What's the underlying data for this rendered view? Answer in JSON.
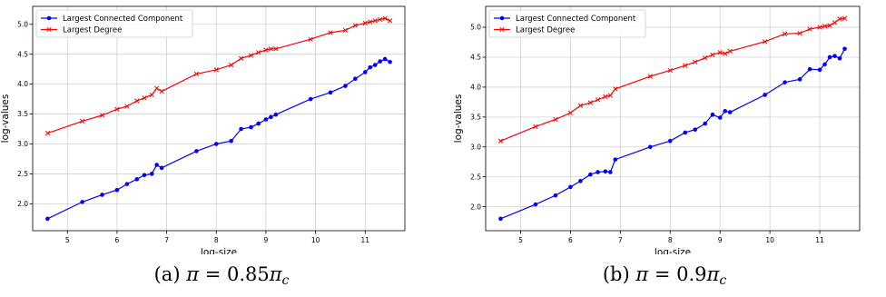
{
  "chart_data": [
    {
      "type": "line",
      "xlabel": "log-size",
      "ylabel": "log-values",
      "xlim": [
        4.3,
        11.8
      ],
      "ylim": [
        1.55,
        5.3
      ],
      "xticks": [
        5,
        6,
        7,
        8,
        9,
        10,
        11
      ],
      "yticks": [
        2.0,
        2.5,
        3.0,
        3.5,
        4.0,
        4.5,
        5.0
      ],
      "grid": true,
      "legend_position": "top-left",
      "series": [
        {
          "name": "Largest Connected Component",
          "color": "#0000ff",
          "marker": "circle",
          "x": [
            4.6,
            5.3,
            5.7,
            6.0,
            6.2,
            6.4,
            6.55,
            6.7,
            6.8,
            6.9,
            7.6,
            8.0,
            8.3,
            8.5,
            8.7,
            8.85,
            9.0,
            9.1,
            9.2,
            9.9,
            10.3,
            10.6,
            10.8,
            11.0,
            11.1,
            11.2,
            11.3,
            11.4,
            11.5
          ],
          "y": [
            1.75,
            2.03,
            2.15,
            2.23,
            2.33,
            2.41,
            2.48,
            2.5,
            2.65,
            2.6,
            2.88,
            3.0,
            3.05,
            3.25,
            3.28,
            3.34,
            3.41,
            3.45,
            3.49,
            3.75,
            3.86,
            3.97,
            4.09,
            4.2,
            4.28,
            4.32,
            4.38,
            4.42,
            4.37
          ]
        },
        {
          "name": "Largest Degree",
          "color": "#ff0000",
          "marker": "x",
          "x": [
            4.6,
            5.3,
            5.7,
            6.0,
            6.2,
            6.4,
            6.55,
            6.7,
            6.8,
            6.9,
            7.6,
            8.0,
            8.3,
            8.5,
            8.7,
            8.85,
            9.0,
            9.1,
            9.2,
            9.9,
            10.3,
            10.6,
            10.8,
            11.0,
            11.1,
            11.2,
            11.3,
            11.4,
            11.5
          ],
          "y": [
            3.18,
            3.38,
            3.48,
            3.58,
            3.63,
            3.72,
            3.77,
            3.82,
            3.93,
            3.88,
            4.17,
            4.24,
            4.32,
            4.43,
            4.48,
            4.53,
            4.57,
            4.59,
            4.59,
            4.75,
            4.86,
            4.9,
            4.98,
            5.02,
            5.04,
            5.06,
            5.08,
            5.1,
            5.06
          ]
        }
      ]
    },
    {
      "type": "line",
      "xlabel": "log-size",
      "ylabel": "log-values",
      "xlim": [
        4.3,
        11.8
      ],
      "ylim": [
        1.6,
        5.35
      ],
      "xticks": [
        5,
        6,
        7,
        8,
        9,
        10,
        11
      ],
      "yticks": [
        2.0,
        2.5,
        3.0,
        3.5,
        4.0,
        4.5,
        5.0
      ],
      "grid": true,
      "legend_position": "top-left",
      "series": [
        {
          "name": "Largest Connected Component",
          "color": "#0000ff",
          "marker": "circle",
          "x": [
            4.6,
            5.3,
            5.7,
            6.0,
            6.2,
            6.4,
            6.55,
            6.7,
            6.8,
            6.9,
            7.6,
            8.0,
            8.3,
            8.5,
            8.7,
            8.85,
            9.0,
            9.1,
            9.2,
            9.9,
            10.3,
            10.6,
            10.8,
            11.0,
            11.1,
            11.2,
            11.3,
            11.4,
            11.5
          ],
          "y": [
            1.8,
            2.04,
            2.19,
            2.33,
            2.43,
            2.54,
            2.58,
            2.59,
            2.58,
            2.79,
            3.0,
            3.1,
            3.24,
            3.29,
            3.39,
            3.54,
            3.49,
            3.6,
            3.58,
            3.87,
            4.08,
            4.13,
            4.3,
            4.29,
            4.38,
            4.5,
            4.52,
            4.48,
            4.64
          ]
        },
        {
          "name": "Largest Degree",
          "color": "#ff0000",
          "marker": "x",
          "x": [
            4.6,
            5.3,
            5.7,
            6.0,
            6.2,
            6.4,
            6.55,
            6.7,
            6.8,
            6.9,
            7.6,
            8.0,
            8.3,
            8.5,
            8.7,
            8.85,
            9.0,
            9.1,
            9.2,
            9.9,
            10.3,
            10.6,
            10.8,
            11.0,
            11.1,
            11.2,
            11.3,
            11.4,
            11.5
          ],
          "y": [
            3.1,
            3.34,
            3.46,
            3.57,
            3.69,
            3.74,
            3.79,
            3.84,
            3.86,
            3.97,
            4.18,
            4.28,
            4.36,
            4.42,
            4.49,
            4.54,
            4.58,
            4.56,
            4.6,
            4.76,
            4.89,
            4.9,
            4.97,
            5.0,
            5.02,
            5.03,
            5.08,
            5.14,
            5.15
          ]
        }
      ]
    }
  ],
  "captions": [
    {
      "prefix": "(a) ",
      "var": "π",
      "eq": " = 0.85",
      "var2": "π",
      "sub": "c"
    },
    {
      "prefix": "(b) ",
      "var": "π",
      "eq": " = 0.9",
      "var2": "π",
      "sub": "c"
    }
  ]
}
